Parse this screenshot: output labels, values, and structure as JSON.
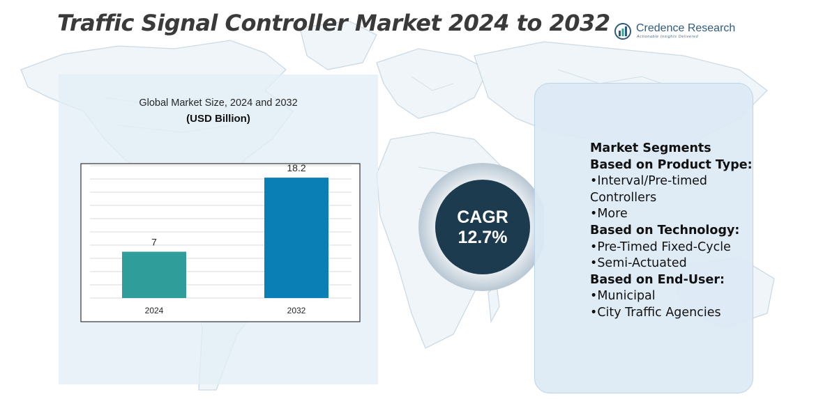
{
  "header": {
    "title": "Traffic Signal Controller Market 2024 to 2032"
  },
  "logo": {
    "name": "Credence Research",
    "tagline": "Actionable Insights Delivered"
  },
  "chart_data": {
    "type": "bar",
    "title": "Global Market Size, 2024 and 2032",
    "subtitle": "(USD Billion)",
    "categories": [
      "2024",
      "2032"
    ],
    "values": [
      7,
      18.2
    ],
    "value_labels": [
      "7",
      "18.2"
    ],
    "ylim": [
      0,
      20
    ],
    "grid": true,
    "xlabel": "",
    "ylabel": "",
    "colors": [
      "#2f9e9a",
      "#0a7fb5"
    ]
  },
  "cagr": {
    "label": "CAGR",
    "value": "12.7%"
  },
  "segments": {
    "heading": "Market Segments",
    "groups": [
      {
        "title": "Based on Product Type:",
        "items": [
          "•Interval/Pre-timed Controllers",
          "•More"
        ]
      },
      {
        "title": "Based on Technology:",
        "items": [
          "•Pre-Timed Fixed-Cycle",
          "•Semi-Actuated"
        ]
      },
      {
        "title": "Based on End-User:",
        "items": [
          "•Municipal",
          "•City Traffic Agencies"
        ]
      }
    ]
  },
  "colors": {
    "title": "#3a3a3a",
    "brand": "#2f5a80",
    "panel": "#e2eef6",
    "cagr_circle": "#1c3b4f"
  }
}
